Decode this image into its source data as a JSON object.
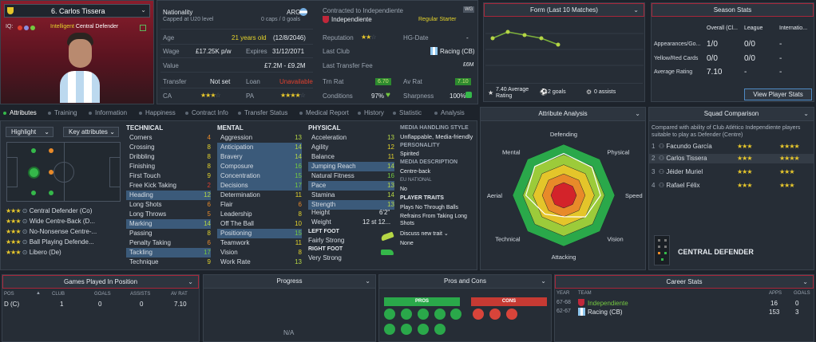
{
  "player": {
    "number_name": "6. Carlos Tissera",
    "iq_label": "IQ:",
    "role_tag_pre": "Intelligent",
    "role_tag": "Central Defender"
  },
  "info": {
    "nationality_label": "Nationality",
    "nationality_sub": "Capped at U20 level",
    "nation": "ARG",
    "nation_sub": "0 caps / 0 goals",
    "contract_label": "Contracted to Independiente",
    "club": "Independiente",
    "squad_badge": "WG",
    "squad_status": "Regular Starter",
    "age_label": "Age",
    "age_value": "21 years old",
    "dob": "(12/8/2046)",
    "wage_label": "Wage",
    "wage_value": "£17.25K p/w",
    "expires_label": "Expires",
    "expires_value": "31/12/2071",
    "value_label": "Value",
    "value_value": "£7.2M - £9.2M",
    "transfer_label": "Transfer",
    "transfer_value": "Not set",
    "loan_label": "Loan",
    "loan_value": "Unavailable",
    "ca_label": "CA",
    "pa_label": "PA",
    "reputation_label": "Reputation",
    "hg_label": "HG-Date",
    "hg_value": "-",
    "last_club_label": "Last Club",
    "last_club_value": "Racing (CB)",
    "last_fee_label": "Last Transfer Fee",
    "last_fee_value": "£6M",
    "trn_label": "Trn Rat",
    "trn_value": "6.70",
    "av_label": "Av Rat",
    "av_value": "7.10",
    "cond_label": "Conditions",
    "cond_value": "97%",
    "sharp_label": "Sharpness",
    "sharp_value": "100%"
  },
  "form": {
    "title": "Form (Last 10 Matches)",
    "avg": "7.40 Average Rating",
    "goals": "2 goals",
    "assists": "0 assists"
  },
  "season": {
    "title": "Season Stats",
    "cols": [
      "Overall (Cl...",
      "League",
      "Internatio..."
    ],
    "rows": [
      {
        "label": "Appearances/Go...",
        "v": [
          "1/0",
          "0/0",
          "-"
        ]
      },
      {
        "label": "Yellow/Red Cards",
        "v": [
          "0/0",
          "0/0",
          "-"
        ]
      },
      {
        "label": "Average Rating",
        "v": [
          "7.10",
          "-",
          "-"
        ]
      }
    ],
    "button": "View Player Stats"
  },
  "tabs": [
    "Attributes",
    "Training",
    "Information",
    "Happiness",
    "Contract Info",
    "Transfer Status",
    "Medical Report",
    "History",
    "Statistic",
    "Analysis"
  ],
  "pitch": {
    "highlight": "Highlight",
    "key_attrs": "Key attributes",
    "positions": [
      {
        "name": "Central Defender (Co)",
        "s": "★★★",
        "p": "★★★"
      },
      {
        "name": "Wide Centre-Back (D...",
        "s": "★★★",
        "p": "★★★"
      },
      {
        "name": "No-Nonsense Centre-...",
        "s": "★★★",
        "p": "★★★"
      },
      {
        "name": "Ball Playing Defende...",
        "s": "★★★",
        "p": "★★★"
      },
      {
        "name": "Libero (De)",
        "s": "★★★",
        "p": "★★★"
      }
    ]
  },
  "technical": {
    "title": "TECHNICAL",
    "items": [
      [
        "Corners",
        "4"
      ],
      [
        "Crossing",
        "8"
      ],
      [
        "Dribbling",
        "8"
      ],
      [
        "Finishing",
        "8"
      ],
      [
        "First Touch",
        "9"
      ],
      [
        "Free Kick Taking",
        "2"
      ],
      [
        "Heading",
        "12"
      ],
      [
        "Long Shots",
        "6"
      ],
      [
        "Long Throws",
        "5"
      ],
      [
        "Marking",
        "14"
      ],
      [
        "Passing",
        "8"
      ],
      [
        "Penalty Taking",
        "6"
      ],
      [
        "Tackling",
        "17"
      ],
      [
        "Technique",
        "9"
      ]
    ]
  },
  "mental": {
    "title": "MENTAL",
    "items": [
      [
        "Aggression",
        "13"
      ],
      [
        "Anticipation",
        "14"
      ],
      [
        "Bravery",
        "14"
      ],
      [
        "Composure",
        "16"
      ],
      [
        "Concentration",
        "15"
      ],
      [
        "Decisions",
        "17"
      ],
      [
        "Determination",
        "11"
      ],
      [
        "Flair",
        "6"
      ],
      [
        "Leadership",
        "8"
      ],
      [
        "Off The Ball",
        "10"
      ],
      [
        "Positioning",
        "15"
      ],
      [
        "Teamwork",
        "11"
      ],
      [
        "Vision",
        "8"
      ],
      [
        "Work Rate",
        "13"
      ]
    ]
  },
  "physical": {
    "title": "PHYSICAL",
    "items": [
      [
        "Acceleration",
        "13"
      ],
      [
        "Agility",
        "12"
      ],
      [
        "Balance",
        "11"
      ],
      [
        "Jumping Reach",
        "14"
      ],
      [
        "Natural Fitness",
        "16"
      ],
      [
        "Pace",
        "13"
      ],
      [
        "Stamina",
        "14"
      ],
      [
        "Strength",
        "13"
      ]
    ],
    "height_label": "Height",
    "height": "6'2\"",
    "weight_label": "Weight",
    "weight": "12 st 12...",
    "lf_label": "LEFT FOOT",
    "lf": "Fairly Strong",
    "rf_label": "RIGHT FOOT",
    "rf": "Very Strong"
  },
  "media": {
    "h1": "MEDIA HANDLING STYLE",
    "v1": "Unflappable, Media-friendly",
    "h2": "PERSONALITY",
    "v2": "Spirited",
    "h3": "MEDIA DESCRIPTION",
    "v3": "Centre-back",
    "h4": "EU NATIONAL",
    "v4": "No",
    "h5": "PLAYER TRAITS",
    "traits": [
      "Plays No Through Balls",
      "Refrains From Taking Long Shots"
    ],
    "discuss": "Discuss new trait",
    "none": "None"
  },
  "analysis": {
    "title": "Attribute Analysis",
    "labels": [
      "Defending",
      "Physical",
      "Speed",
      "Vision",
      "Attacking",
      "Technical",
      "Aerial",
      "Mental"
    ],
    "values": [
      0.82,
      0.78,
      0.72,
      0.6,
      0.42,
      0.52,
      0.74,
      0.8
    ]
  },
  "squad": {
    "title": "Squad Comparison",
    "desc": "Compared with ability of Club Atlético Independiente players suitable to play as Defender (Centre)",
    "rows": [
      {
        "n": "1",
        "name": "Facundo García",
        "s": "★★★",
        "p": "★★★★"
      },
      {
        "n": "2",
        "name": "Carlos Tissera",
        "s": "★★★",
        "p": "★★★★"
      },
      {
        "n": "3",
        "name": "Jéider Muriel",
        "s": "★★★",
        "p": "★★★"
      },
      {
        "n": "4",
        "name": "Rafael Félix",
        "s": "★★★",
        "p": "★★★"
      }
    ],
    "position": "CENTRAL DEFENDER"
  },
  "games": {
    "title": "Games Played In Position",
    "cols": [
      "POS",
      "CLUB",
      "GOALS",
      "ASSISTS",
      "AV RAT"
    ],
    "row": [
      "D (C)",
      "1",
      "0",
      "0",
      "7.10"
    ]
  },
  "progress": {
    "title": "Progress",
    "na": "N/A"
  },
  "proscons": {
    "title": "Pros and Cons",
    "pros": "PROS",
    "cons": "CONS"
  },
  "career": {
    "title": "Career Stats",
    "cols": [
      "YEAR",
      "TEAM",
      "APPS",
      "GOALS"
    ],
    "rows": [
      [
        "67-68",
        "Independiente",
        "16",
        "0"
      ],
      [
        "62-67",
        "Racing (CB)",
        "153",
        "3"
      ]
    ]
  },
  "colors": {
    "accent_red": "#a8263a",
    "green": "#35b84a",
    "yellow": "#e4d32b"
  }
}
